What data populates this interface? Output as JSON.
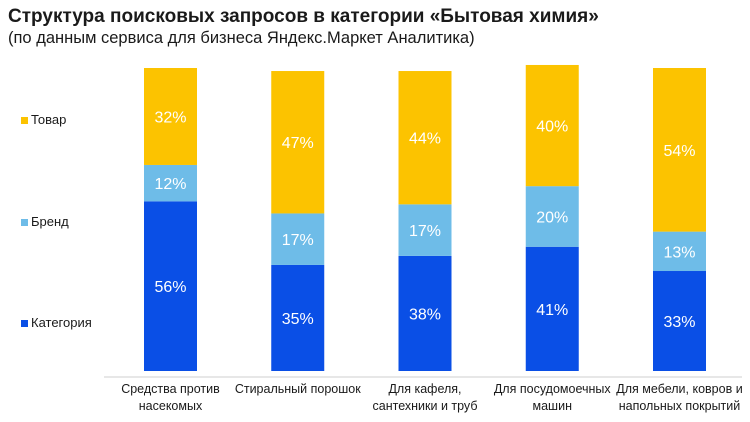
{
  "title": "Структура поисковых запросов в категории «Бытовая химия»",
  "subtitle": "(по данным сервиса для бизнеса Яндекс.Маркет Аналитика)",
  "colors": {
    "Категория": "#0a4fe6",
    "Бренд": "#6ebce8",
    "Товар": "#fcc300"
  },
  "chart_data": {
    "type": "bar",
    "stacked": true,
    "categories": [
      [
        "Средства против",
        "насекомых"
      ],
      [
        "Стиральный порошок"
      ],
      [
        "Для кафеля,",
        "сантехники и труб"
      ],
      [
        "Для посудомоечных",
        "машин"
      ],
      [
        "Для мебели, ковров и",
        "напольных покрытий"
      ]
    ],
    "series": [
      {
        "name": "Категория",
        "values": [
          56,
          35,
          38,
          41,
          33
        ],
        "labels": [
          "56%",
          "35%",
          "38%",
          "41%",
          "33%"
        ]
      },
      {
        "name": "Бренд",
        "values": [
          12,
          17,
          17,
          20,
          13
        ],
        "labels": [
          "12%",
          "17%",
          "17%",
          "20%",
          "13%"
        ]
      },
      {
        "name": "Товар",
        "values": [
          32,
          47,
          44,
          40,
          54
        ],
        "labels": [
          "32%",
          "47%",
          "44%",
          "40%",
          "54%"
        ]
      }
    ],
    "ylim": [
      0,
      100
    ],
    "grid": false,
    "legend": "left"
  }
}
